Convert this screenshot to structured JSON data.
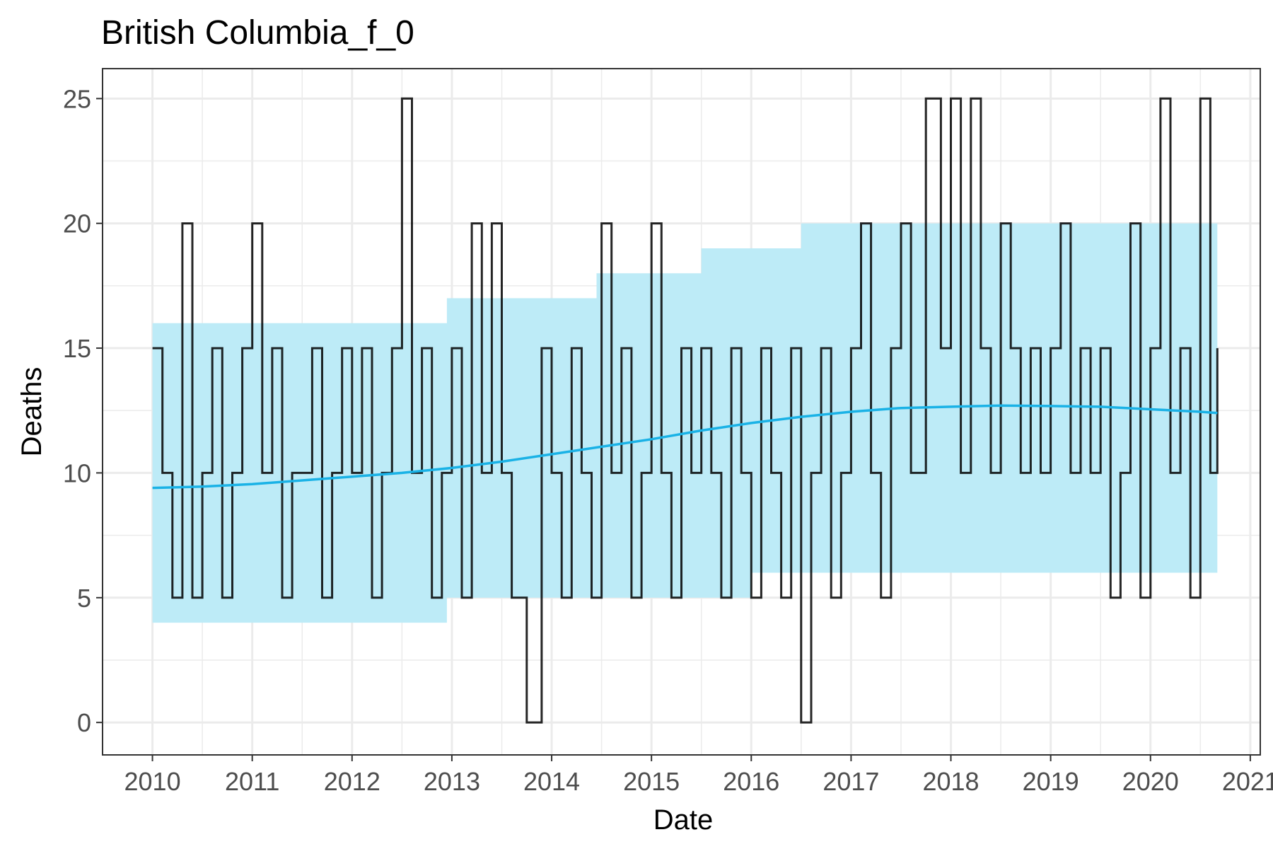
{
  "chart_data": {
    "type": "line",
    "title": "British Columbia_f_0",
    "xlabel": "Date",
    "ylabel": "Deaths",
    "xlim": [
      2009.5,
      2021.1
    ],
    "ylim": [
      -1.3,
      26.2
    ],
    "x_ticks": [
      2010,
      2011,
      2012,
      2013,
      2014,
      2015,
      2016,
      2017,
      2018,
      2019,
      2020,
      2021
    ],
    "x_tick_labels": [
      "2010",
      "2011",
      "2012",
      "2013",
      "2014",
      "2015",
      "2016",
      "2017",
      "2018",
      "2019",
      "2020",
      "2021"
    ],
    "y_ticks": [
      0,
      5,
      10,
      15,
      20,
      25
    ],
    "y_tick_labels": [
      "0",
      "5",
      "10",
      "15",
      "20",
      "25"
    ],
    "grid": true,
    "colors": {
      "band": "#bdebf7",
      "observed": "#000000",
      "trend": "#1ab2e6",
      "grid": "#ebebeb",
      "border": "#333333"
    },
    "series": [
      {
        "kind": "band",
        "x": [
          2010.0,
          2010.55,
          2011.6,
          2012.15,
          2012.95,
          2013.2,
          2013.75,
          2014.45,
          2015.05,
          2015.5,
          2016.0,
          2016.5,
          2016.95,
          2017.1,
          2018.15,
          2019.0,
          2020.0,
          2020.67
        ],
        "lower": [
          4,
          4,
          4,
          4,
          5,
          5,
          5,
          5,
          5,
          5,
          6,
          6,
          6,
          6,
          6,
          6,
          6,
          6
        ],
        "upper": [
          16,
          16,
          16,
          16,
          17,
          17,
          17,
          18,
          18,
          19,
          19,
          20,
          20,
          20,
          20,
          20,
          20,
          20
        ]
      },
      {
        "kind": "trend",
        "x": [
          2010.0,
          2010.5,
          2011.0,
          2011.5,
          2012.0,
          2012.5,
          2013.0,
          2013.5,
          2014.0,
          2014.5,
          2015.0,
          2015.5,
          2016.0,
          2016.5,
          2017.0,
          2017.5,
          2018.0,
          2018.5,
          2019.0,
          2019.5,
          2020.0,
          2020.5,
          2020.67
        ],
        "y": [
          9.4,
          9.45,
          9.55,
          9.7,
          9.85,
          10.0,
          10.2,
          10.45,
          10.75,
          11.05,
          11.35,
          11.7,
          12.0,
          12.25,
          12.45,
          12.6,
          12.65,
          12.7,
          12.68,
          12.65,
          12.55,
          12.45,
          12.4
        ]
      },
      {
        "kind": "observed",
        "x": [
          2010.0,
          2010.1,
          2010.2,
          2010.3,
          2010.4,
          2010.5,
          2010.6,
          2010.7,
          2010.8,
          2010.9,
          2011.0,
          2011.1,
          2011.2,
          2011.3,
          2011.4,
          2011.5,
          2011.6,
          2011.7,
          2011.8,
          2011.9,
          2012.0,
          2012.1,
          2012.2,
          2012.3,
          2012.4,
          2012.5,
          2012.6,
          2012.7,
          2012.8,
          2012.9,
          2013.0,
          2013.1,
          2013.2,
          2013.3,
          2013.4,
          2013.5,
          2013.6,
          2013.75,
          2013.9,
          2014.0,
          2014.1,
          2014.2,
          2014.3,
          2014.4,
          2014.5,
          2014.6,
          2014.7,
          2014.8,
          2014.9,
          2015.0,
          2015.1,
          2015.2,
          2015.3,
          2015.4,
          2015.5,
          2015.6,
          2015.7,
          2015.8,
          2015.9,
          2016.0,
          2016.1,
          2016.2,
          2016.3,
          2016.4,
          2016.5,
          2016.6,
          2016.7,
          2016.8,
          2016.9,
          2017.0,
          2017.1,
          2017.2,
          2017.3,
          2017.4,
          2017.5,
          2017.6,
          2017.75,
          2017.9,
          2018.0,
          2018.1,
          2018.2,
          2018.3,
          2018.4,
          2018.5,
          2018.6,
          2018.7,
          2018.8,
          2018.9,
          2019.0,
          2019.1,
          2019.2,
          2019.3,
          2019.4,
          2019.5,
          2019.6,
          2019.7,
          2019.8,
          2019.9,
          2020.0,
          2020.1,
          2020.2,
          2020.3,
          2020.4,
          2020.5,
          2020.6,
          2020.67
        ],
        "y": [
          15,
          10,
          5,
          20,
          5,
          10,
          15,
          5,
          10,
          15,
          20,
          10,
          15,
          5,
          10,
          10,
          15,
          5,
          10,
          15,
          10,
          15,
          5,
          10,
          15,
          25,
          10,
          15,
          5,
          10,
          15,
          5,
          20,
          10,
          20,
          10,
          5,
          0,
          15,
          10,
          5,
          15,
          10,
          5,
          20,
          10,
          15,
          5,
          10,
          20,
          10,
          5,
          15,
          10,
          15,
          10,
          5,
          15,
          10,
          5,
          15,
          10,
          5,
          15,
          0,
          10,
          15,
          5,
          10,
          15,
          20,
          10,
          5,
          15,
          20,
          10,
          25,
          15,
          25,
          10,
          25,
          15,
          10,
          20,
          15,
          10,
          15,
          10,
          15,
          20,
          10,
          15,
          10,
          15,
          5,
          10,
          20,
          5,
          15,
          25,
          10,
          15,
          5,
          25,
          10,
          15
        ]
      }
    ]
  }
}
